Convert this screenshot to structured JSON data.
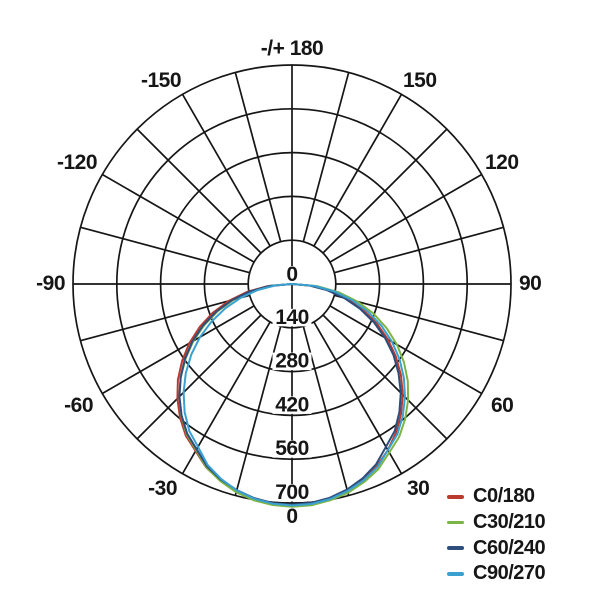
{
  "page": {
    "background": "#ffffff",
    "grid_color": "#161616",
    "text_color": "#161616"
  },
  "chart_data": {
    "type": "line",
    "subtype": "polar-photometric",
    "title": "",
    "angular_axis": {
      "top_label": "-/+ 180",
      "bottom_label": "0",
      "tick_labels": [
        "-150",
        "-120",
        "-90",
        "-60",
        "-30",
        "30",
        "60",
        "90",
        "120",
        "150"
      ],
      "tick_step_deg": 30,
      "spoke_step_deg": 15
    },
    "radial_axis": {
      "tick_labels": [
        "0",
        "140",
        "280",
        "420",
        "560",
        "700"
      ],
      "tick_values": [
        0,
        140,
        280,
        420,
        560,
        700
      ],
      "max": 700
    },
    "legend_position": "bottom-right",
    "grid": true,
    "angles_deg": [
      -90,
      -85,
      -80,
      -75,
      -70,
      -65,
      -60,
      -55,
      -50,
      -45,
      -40,
      -35,
      -30,
      -25,
      -20,
      -15,
      -10,
      -5,
      0,
      5,
      10,
      15,
      20,
      25,
      30,
      35,
      40,
      45,
      50,
      55,
      60,
      65,
      70,
      75,
      80,
      85,
      90
    ],
    "series": [
      {
        "name": "C0/180",
        "color": "#b93b2e",
        "values": [
          0,
          79,
          146,
          210,
          270,
          326,
          379,
          429,
          476,
          518,
          557,
          592,
          616,
          648,
          669,
          686,
          698,
          706,
          708,
          705,
          697,
          684,
          665,
          642,
          613,
          580,
          542,
          501,
          455,
          406,
          354,
          299,
          242,
          183,
          123,
          62,
          0
        ]
      },
      {
        "name": "C30/210",
        "color": "#7cb545",
        "values": [
          0,
          67,
          130,
          192,
          252,
          309,
          364,
          415,
          464,
          509,
          550,
          587,
          613,
          647,
          670,
          689,
          702,
          709,
          712,
          710,
          702,
          691,
          674,
          653,
          622,
          597,
          563,
          525,
          483,
          437,
          387,
          334,
          277,
          217,
          152,
          83,
          0
        ]
      },
      {
        "name": "C60/240",
        "color": "#2d4d7c",
        "values": [
          0,
          71,
          136,
          198,
          257,
          314,
          368,
          418,
          465,
          509,
          549,
          584,
          610,
          643,
          665,
          682,
          695,
          703,
          705,
          702,
          694,
          680,
          661,
          636,
          601,
          573,
          534,
          492,
          445,
          396,
          343,
          288,
          231,
          173,
          114,
          56,
          0
        ]
      },
      {
        "name": "C90/270",
        "color": "#3aa0d0",
        "values": [
          0,
          53,
          111,
          169,
          227,
          284,
          340,
          393,
          443,
          490,
          534,
          573,
          601,
          638,
          663,
          683,
          697,
          705,
          708,
          706,
          698,
          685,
          668,
          646,
          613,
          587,
          551,
          511,
          467,
          420,
          369,
          315,
          258,
          199,
          137,
          71,
          0
        ]
      }
    ]
  },
  "legend": {
    "items": [
      {
        "label": "C0/180",
        "color": "#b93b2e"
      },
      {
        "label": "C30/210",
        "color": "#7cb545"
      },
      {
        "label": "C60/240",
        "color": "#2d4d7c"
      },
      {
        "label": "C90/270",
        "color": "#3aa0d0"
      }
    ]
  }
}
